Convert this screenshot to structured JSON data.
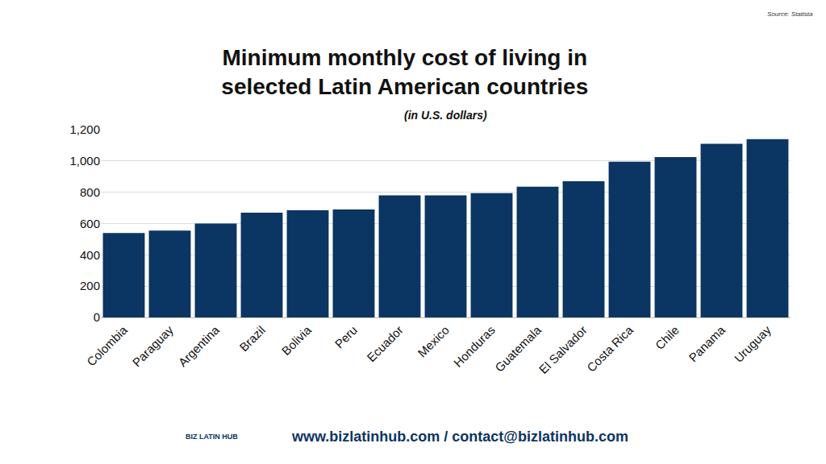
{
  "chart_data": {
    "type": "bar",
    "title": "Minimum monthly cost of living in selected Latin American countries",
    "subtitle": "(in U.S. dollars)",
    "annotations": [
      "Source: Statista",
      "www.bizlatinhub.com / contact@bizlatinhub.com",
      "BIZ LATIN HUB"
    ],
    "categories": [
      "Colombia",
      "Paraguay",
      "Argentina",
      "Brazil",
      "Bolivia",
      "Peru",
      "Ecuador",
      "Mexico",
      "Honduras",
      "Guatemala",
      "El Salvador",
      "Costa Rica",
      "Chile",
      "Panama",
      "Uruguay"
    ],
    "values": [
      540,
      555,
      600,
      670,
      685,
      690,
      780,
      780,
      795,
      835,
      870,
      995,
      1025,
      1110,
      1140
    ],
    "color": "#0b3563",
    "ylim": [
      0,
      1200
    ],
    "yticks": [
      0,
      200,
      400,
      600,
      800,
      {
        "value": 1000,
        "label": "1,000"
      },
      {
        "value": 1200,
        "label": "1,200"
      }
    ],
    "grid": true
  }
}
